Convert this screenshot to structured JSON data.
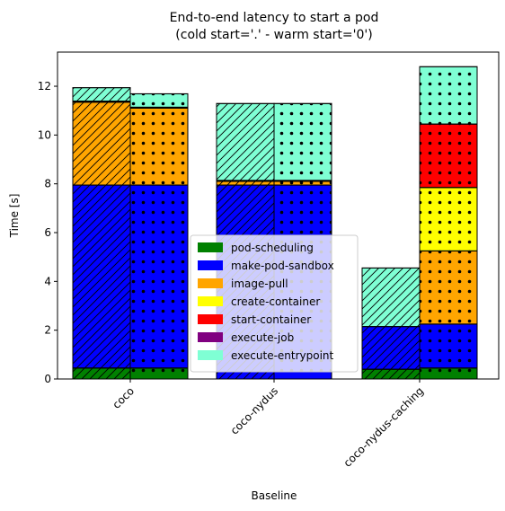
{
  "chart_data": {
    "type": "bar",
    "title": "End-to-end latency to start a pod",
    "subtitle": "(cold start='.' - warm start='0')",
    "xlabel": "Baseline",
    "ylabel": "Time [s]",
    "ylim": [
      0,
      13.4
    ],
    "yticks": [
      0,
      2,
      4,
      6,
      8,
      10,
      12
    ],
    "ytick_labels": [
      "0",
      "2",
      "4",
      "6",
      "8",
      "10",
      "12"
    ],
    "categories": [
      "coco",
      "coco-nydus",
      "coco-nydus-caching"
    ],
    "legend_position": "lower-center",
    "segments": [
      "pod-scheduling",
      "make-pod-sandbox",
      "image-pull",
      "create-container",
      "start-container",
      "execute-job",
      "execute-entrypoint"
    ],
    "colors": {
      "pod-scheduling": "#008000",
      "make-pod-sandbox": "#0000ff",
      "image-pull": "#ffa500",
      "create-container": "#ffff00",
      "start-container": "#ff0000",
      "execute-job": "#800080",
      "execute-entrypoint": "#7fffd4"
    },
    "series": [
      {
        "pattern": "hatch-slash",
        "values": {
          "coco": [
            0.45,
            7.5,
            3.4,
            0.02,
            0.02,
            0.0,
            0.55
          ],
          "coco-nydus": [
            0.0,
            7.95,
            0.15,
            0.02,
            0.02,
            0.0,
            3.15
          ],
          "coco-nydus-caching": [
            0.4,
            1.75,
            0.0,
            0.0,
            0.0,
            0.0,
            2.4
          ]
        }
      },
      {
        "pattern": "dots",
        "values": {
          "coco": [
            0.45,
            7.5,
            3.15,
            0.02,
            0.02,
            0.0,
            0.55
          ],
          "coco-nydus": [
            0.0,
            7.95,
            0.15,
            0.02,
            0.02,
            0.0,
            3.15
          ],
          "coco-nydus-caching": [
            0.45,
            1.8,
            3.0,
            2.6,
            2.6,
            0.0,
            2.35
          ]
        }
      }
    ]
  }
}
